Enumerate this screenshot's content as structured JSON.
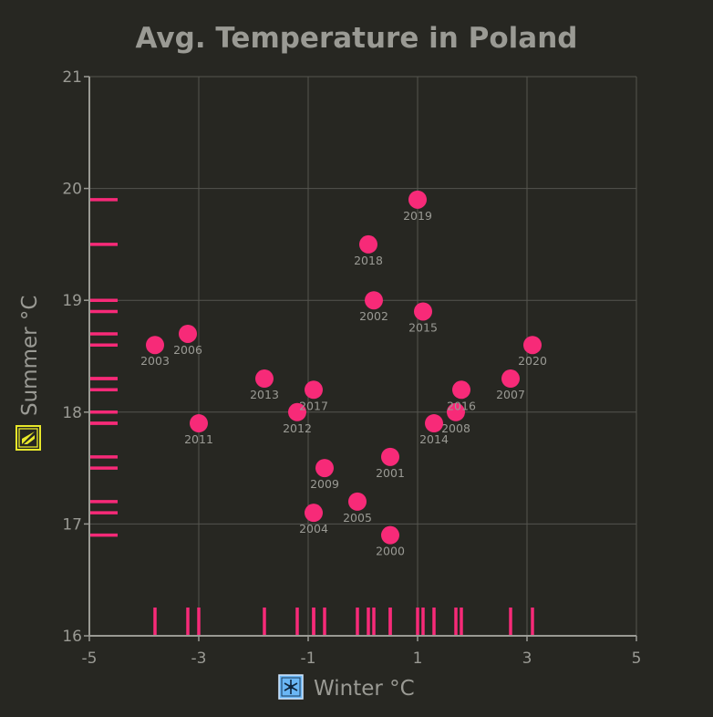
{
  "chart_data": {
    "type": "scatter",
    "title": "Avg. Temperature in Poland",
    "xlabel": "Winter °C",
    "ylabel": "Summer °C",
    "xlabel_icon": "snowflake-icon",
    "ylabel_icon": "sun-icon",
    "xlim": [
      -5,
      5
    ],
    "ylim": [
      16,
      21
    ],
    "xticks": [
      -5,
      -3,
      -1,
      1,
      3,
      5
    ],
    "yticks": [
      16,
      17,
      18,
      19,
      20,
      21
    ],
    "grid": true,
    "rug": true,
    "colors": {
      "background": "#272722",
      "point": "#f72a78",
      "text": "#9a9a94",
      "grid": "#55554f",
      "axis": "#9a9a94"
    },
    "points": [
      {
        "label": "2000",
        "x": 0.5,
        "y": 16.9
      },
      {
        "label": "2001",
        "x": 0.5,
        "y": 17.6
      },
      {
        "label": "2002",
        "x": 0.2,
        "y": 19.0
      },
      {
        "label": "2003",
        "x": -3.8,
        "y": 18.6
      },
      {
        "label": "2004",
        "x": -0.9,
        "y": 17.1
      },
      {
        "label": "2005",
        "x": -0.1,
        "y": 17.2
      },
      {
        "label": "2006",
        "x": -3.2,
        "y": 18.7
      },
      {
        "label": "2007",
        "x": 2.7,
        "y": 18.3
      },
      {
        "label": "2008",
        "x": 1.7,
        "y": 18.0
      },
      {
        "label": "2009",
        "x": -0.7,
        "y": 17.5
      },
      {
        "label": "2011",
        "x": -3.0,
        "y": 17.9
      },
      {
        "label": "2012",
        "x": -1.2,
        "y": 18.0
      },
      {
        "label": "2013",
        "x": -1.8,
        "y": 18.3
      },
      {
        "label": "2014",
        "x": 1.3,
        "y": 17.9
      },
      {
        "label": "2015",
        "x": 1.1,
        "y": 18.9
      },
      {
        "label": "2016",
        "x": 1.8,
        "y": 18.2
      },
      {
        "label": "2017",
        "x": -0.9,
        "y": 18.2
      },
      {
        "label": "2018",
        "x": 0.1,
        "y": 19.5
      },
      {
        "label": "2019",
        "x": 1.0,
        "y": 19.9
      },
      {
        "label": "2020",
        "x": 3.1,
        "y": 18.6
      }
    ]
  }
}
